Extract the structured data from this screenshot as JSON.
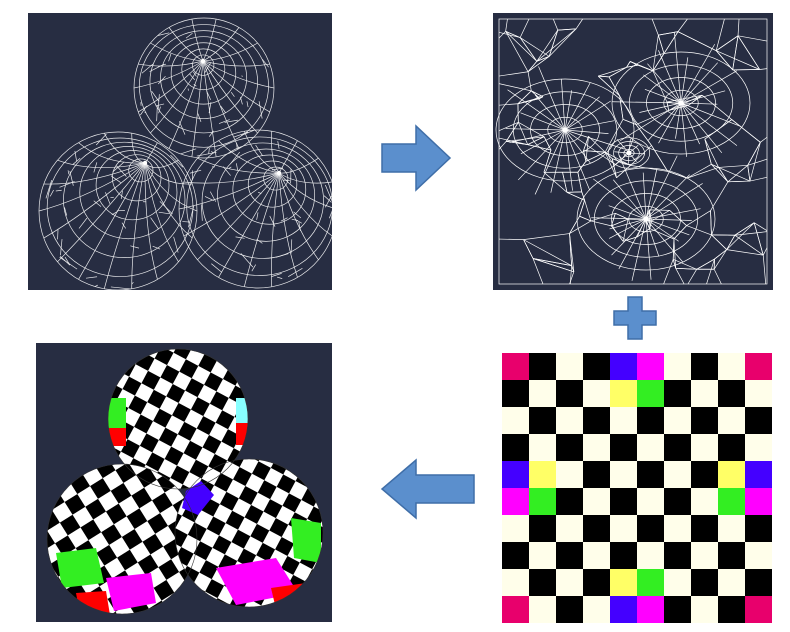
{
  "colors": {
    "panel_bg": "#272d42",
    "wire": "#ffffff",
    "arrow_fill": "#5b8fcd",
    "arrow_stroke": "#3f6ea8",
    "checker_dark": "#000000",
    "checker_light": "#fffeea",
    "pink": "#e8006c",
    "yellow": "#ffff66",
    "green": "#33ee22",
    "magenta": "#ff00ff",
    "blue": "#4400ff",
    "red": "#ff0000",
    "cyan": "#88ffff"
  },
  "checker": {
    "grid_size": 10,
    "colored_cells": [
      {
        "r": 0,
        "c": 0,
        "color": "pink"
      },
      {
        "r": 0,
        "c": 9,
        "color": "pink"
      },
      {
        "r": 9,
        "c": 0,
        "color": "pink"
      },
      {
        "r": 9,
        "c": 9,
        "color": "pink"
      },
      {
        "r": 0,
        "c": 4,
        "color": "blue"
      },
      {
        "r": 0,
        "c": 5,
        "color": "magenta"
      },
      {
        "r": 1,
        "c": 4,
        "color": "yellow"
      },
      {
        "r": 1,
        "c": 5,
        "color": "green"
      },
      {
        "r": 4,
        "c": 0,
        "color": "blue"
      },
      {
        "r": 4,
        "c": 1,
        "color": "yellow"
      },
      {
        "r": 5,
        "c": 0,
        "color": "magenta"
      },
      {
        "r": 5,
        "c": 1,
        "color": "green"
      },
      {
        "r": 4,
        "c": 8,
        "color": "yellow"
      },
      {
        "r": 4,
        "c": 9,
        "color": "blue"
      },
      {
        "r": 5,
        "c": 8,
        "color": "green"
      },
      {
        "r": 5,
        "c": 9,
        "color": "magenta"
      },
      {
        "r": 8,
        "c": 4,
        "color": "yellow"
      },
      {
        "r": 8,
        "c": 5,
        "color": "green"
      },
      {
        "r": 9,
        "c": 4,
        "color": "blue"
      },
      {
        "r": 9,
        "c": 5,
        "color": "magenta"
      }
    ]
  },
  "icons": {
    "arrow_right": "arrow-right-icon",
    "arrow_left": "arrow-left-icon",
    "plus": "plus-icon"
  }
}
